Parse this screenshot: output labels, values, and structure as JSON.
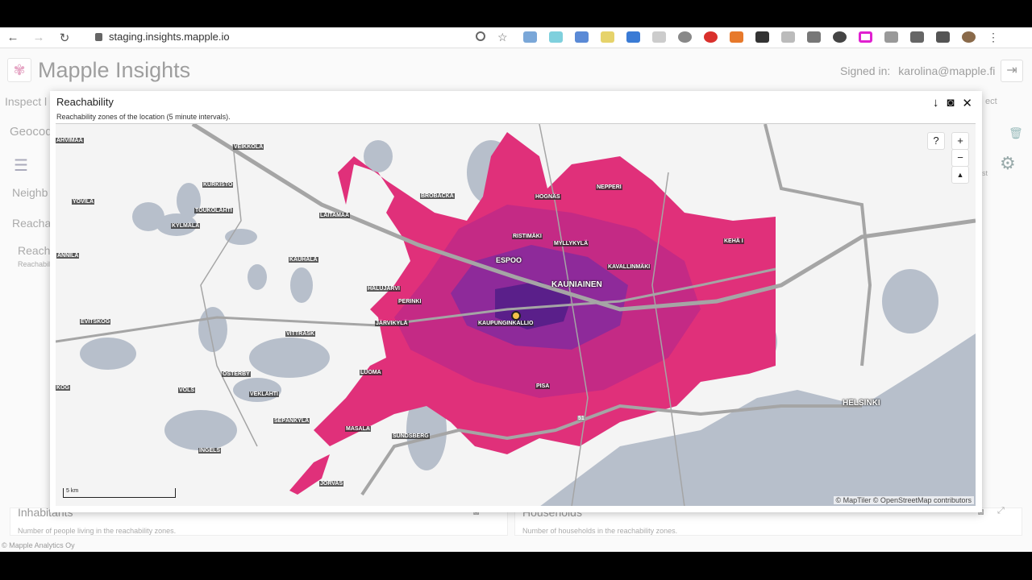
{
  "browser": {
    "url": "staging.insights.mapple.io",
    "back": "←",
    "forward": "→",
    "reload": "↻"
  },
  "app": {
    "title": "Mapple Insights",
    "signed_in_label": "Signed in:",
    "user": "karolina@mapple.fi",
    "footer": "© Mapple Analytics Oy",
    "background": {
      "inspect": "Inspect l",
      "geocode": "Geocod",
      "neighb": "Neighb",
      "reacha": "Reacha",
      "reach_card": "Reach",
      "reach_card_sub": "Reachabil",
      "ect": "ect",
      "st": "st"
    }
  },
  "modal": {
    "title": "Reachability",
    "subtitle": "Reachability zones of the location (5 minute intervals).",
    "map": {
      "labels": [
        "AHVIMAA",
        "VEIKKOLA",
        "KURKISTO",
        "YÖVILÄ",
        "TOUKOLAHTI",
        "KYLMÄLÄ",
        "LAITAMAA",
        "BROBACKA",
        "HOGNÄS",
        "NEPPERI",
        "RISTIMÄKI",
        "MYLLYKYLÄ",
        "ESPOO",
        "KAVALLINMÄKI",
        "KEHÄ I",
        "KAUHALA",
        "ANNILA",
        "HALUJÄRVI",
        "KAUNIAINEN",
        "PERINKI",
        "KAUPUNGINKALLIO",
        "JÄRVIKYLÄ",
        "EVITSKOG",
        "VITTRÄSK",
        "ÖSTERBY",
        "LUOMA",
        "VOLS",
        "VEKLAHTI",
        "PISA",
        "SEPÄNKYLÄ",
        "MASALA",
        "SUNDSBERG",
        "INGELS",
        "JORVAS",
        "HELSINKI",
        "KOG",
        "51"
      ],
      "scale": "5 km",
      "attribution": "© MapTiler © OpenStreetMap contributors",
      "help": "?",
      "zoom_in": "+",
      "zoom_out": "−",
      "compass": "▲"
    },
    "colors": {
      "zone_outer": "#e0307a",
      "zone_mid": "#c42a85",
      "zone_inner": "#8e2a9a",
      "zone_core": "#5a1f8a",
      "water": "#b7bfcb",
      "road": "#a5a5a5"
    }
  },
  "lower": {
    "inhabitants_title": "Inhabitants",
    "inhabitants_sub": "Number of people living in the reachability zones.",
    "households_title": "Households",
    "households_sub": "Number of households in the reachability zones."
  }
}
